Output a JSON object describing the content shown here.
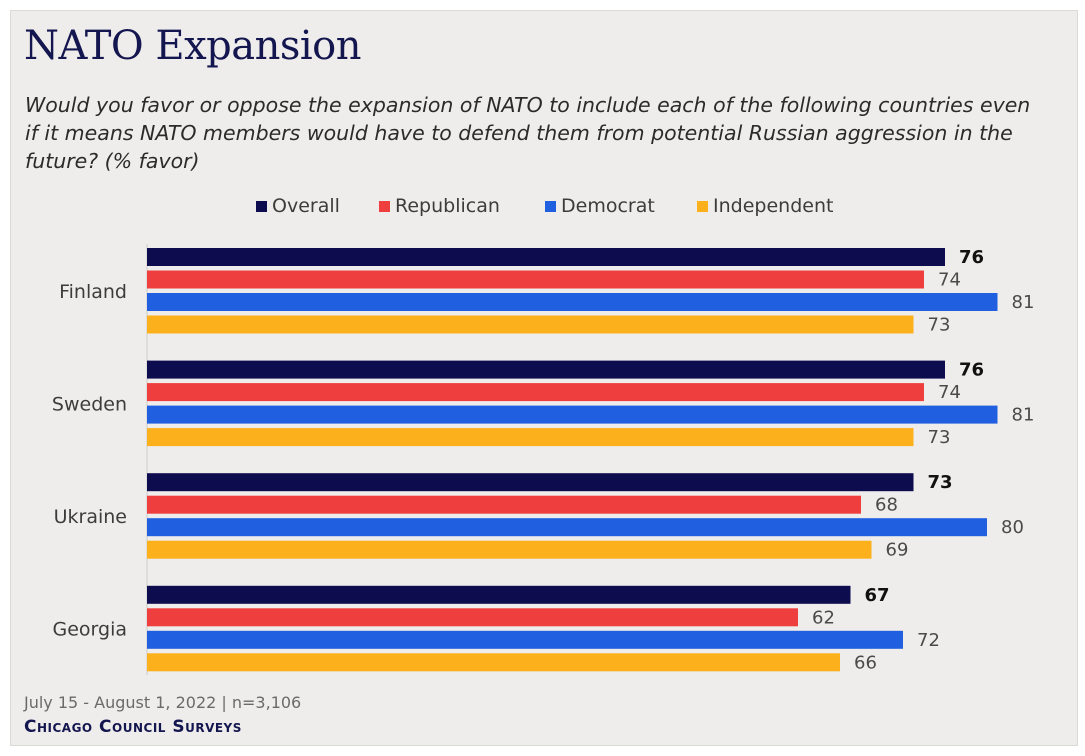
{
  "chart_data": {
    "type": "bar",
    "orientation": "horizontal",
    "title": "NATO Expansion",
    "subtitle": "Would you favor or oppose the expansion of NATO to include each of the following countries even if it means NATO members would have to defend them from potential Russian aggression in the future? (% favor)",
    "categories": [
      "Finland",
      "Sweden",
      "Ukraine",
      "Georgia"
    ],
    "series": [
      {
        "name": "Overall",
        "color": "#0d0c4f",
        "values": [
          76,
          76,
          73,
          67
        ]
      },
      {
        "name": "Republican",
        "color": "#ef3e3e",
        "values": [
          74,
          74,
          68,
          62
        ]
      },
      {
        "name": "Democrat",
        "color": "#1f5fe0",
        "values": [
          81,
          81,
          80,
          72
        ]
      },
      {
        "name": "Independent",
        "color": "#fbb01c",
        "values": [
          73,
          73,
          69,
          66
        ]
      }
    ],
    "xlim": [
      0,
      100
    ],
    "grid": false,
    "legend_position": "top-center"
  },
  "footer": {
    "date_line": "July 15 - August 1, 2022 | n=3,106",
    "source": "Chicago Council Surveys"
  }
}
